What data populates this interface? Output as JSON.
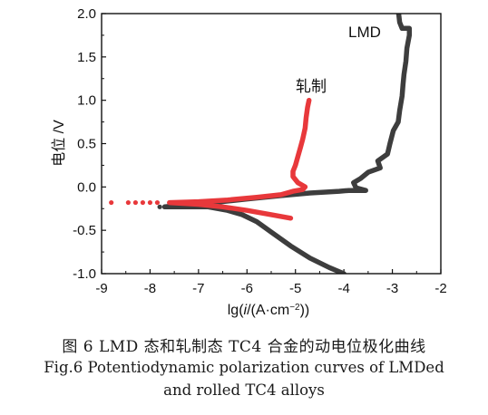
{
  "chart_data": {
    "type": "line",
    "xlabel": "lg(i/(A·cm⁻²))",
    "ylabel": "电位 /V",
    "xlim": [
      -9,
      -2
    ],
    "ylim": [
      -1.0,
      2.0
    ],
    "xticks": [
      "-9",
      "-8",
      "-7",
      "-6",
      "-5",
      "-4",
      "-3",
      "-2"
    ],
    "yticks": [
      "-1.0",
      "-0.5",
      "0.0",
      "0.5",
      "1.0",
      "1.5",
      "2.0"
    ],
    "series": [
      {
        "name": "LMD",
        "color": "#3d3d3d",
        "points": [
          [
            -4.0,
            -1.0
          ],
          [
            -4.3,
            -0.93
          ],
          [
            -4.7,
            -0.82
          ],
          [
            -5.1,
            -0.68
          ],
          [
            -5.5,
            -0.52
          ],
          [
            -5.8,
            -0.4
          ],
          [
            -6.1,
            -0.32
          ],
          [
            -6.4,
            -0.27
          ],
          [
            -6.8,
            -0.23
          ],
          [
            -7.3,
            -0.23
          ],
          [
            -7.7,
            -0.23
          ],
          [
            -7.3,
            -0.21
          ],
          [
            -6.7,
            -0.18
          ],
          [
            -6.0,
            -0.14
          ],
          [
            -5.3,
            -0.1
          ],
          [
            -4.7,
            -0.07
          ],
          [
            -4.1,
            -0.05
          ],
          [
            -3.9,
            -0.04
          ],
          [
            -3.55,
            -0.04
          ],
          [
            -3.75,
            -0.01
          ],
          [
            -3.8,
            0.05
          ],
          [
            -3.65,
            0.1
          ],
          [
            -3.5,
            0.17
          ],
          [
            -3.25,
            0.22
          ],
          [
            -3.3,
            0.3
          ],
          [
            -3.1,
            0.38
          ],
          [
            -3.05,
            0.5
          ],
          [
            -2.98,
            0.65
          ],
          [
            -2.88,
            0.75
          ],
          [
            -2.85,
            0.88
          ],
          [
            -2.82,
            0.98
          ],
          [
            -2.8,
            1.05
          ],
          [
            -2.78,
            1.18
          ],
          [
            -2.76,
            1.3
          ],
          [
            -2.72,
            1.45
          ],
          [
            -2.7,
            1.6
          ],
          [
            -2.65,
            1.75
          ],
          [
            -2.65,
            1.83
          ],
          [
            -2.8,
            1.83
          ],
          [
            -2.85,
            1.9
          ],
          [
            -2.87,
            2.0
          ]
        ],
        "isolated_points": [
          [
            -7.8,
            -0.23
          ]
        ]
      },
      {
        "name": "轧制",
        "color": "#e8383b",
        "points": [
          [
            -5.1,
            -0.36
          ],
          [
            -5.5,
            -0.32
          ],
          [
            -6.0,
            -0.27
          ],
          [
            -6.5,
            -0.23
          ],
          [
            -7.0,
            -0.2
          ],
          [
            -7.6,
            -0.18
          ],
          [
            -7.0,
            -0.17
          ],
          [
            -6.4,
            -0.15
          ],
          [
            -5.8,
            -0.12
          ],
          [
            -5.3,
            -0.09
          ],
          [
            -5.05,
            -0.05
          ],
          [
            -4.85,
            -0.03
          ],
          [
            -4.8,
            0.0
          ],
          [
            -4.95,
            0.05
          ],
          [
            -5.05,
            0.12
          ],
          [
            -5.05,
            0.18
          ],
          [
            -5.0,
            0.25
          ],
          [
            -4.95,
            0.35
          ],
          [
            -4.9,
            0.45
          ],
          [
            -4.85,
            0.55
          ],
          [
            -4.8,
            0.68
          ],
          [
            -4.78,
            0.8
          ],
          [
            -4.75,
            0.92
          ],
          [
            -4.72,
            1.0
          ]
        ],
        "isolated_points": [
          [
            -8.8,
            -0.18
          ],
          [
            -8.45,
            -0.18
          ],
          [
            -8.3,
            -0.18
          ],
          [
            -8.15,
            -0.18
          ],
          [
            -8.0,
            -0.18
          ],
          [
            -7.85,
            -0.18
          ]
        ]
      }
    ]
  },
  "captions": {
    "cn": "图 6  LMD 态和轧制态 TC4 合金的动电位极化曲线",
    "en_line1": "Fig.6  Potentiodynamic polarization curves of LMDed",
    "en_line2": "and rolled TC4 alloys"
  }
}
